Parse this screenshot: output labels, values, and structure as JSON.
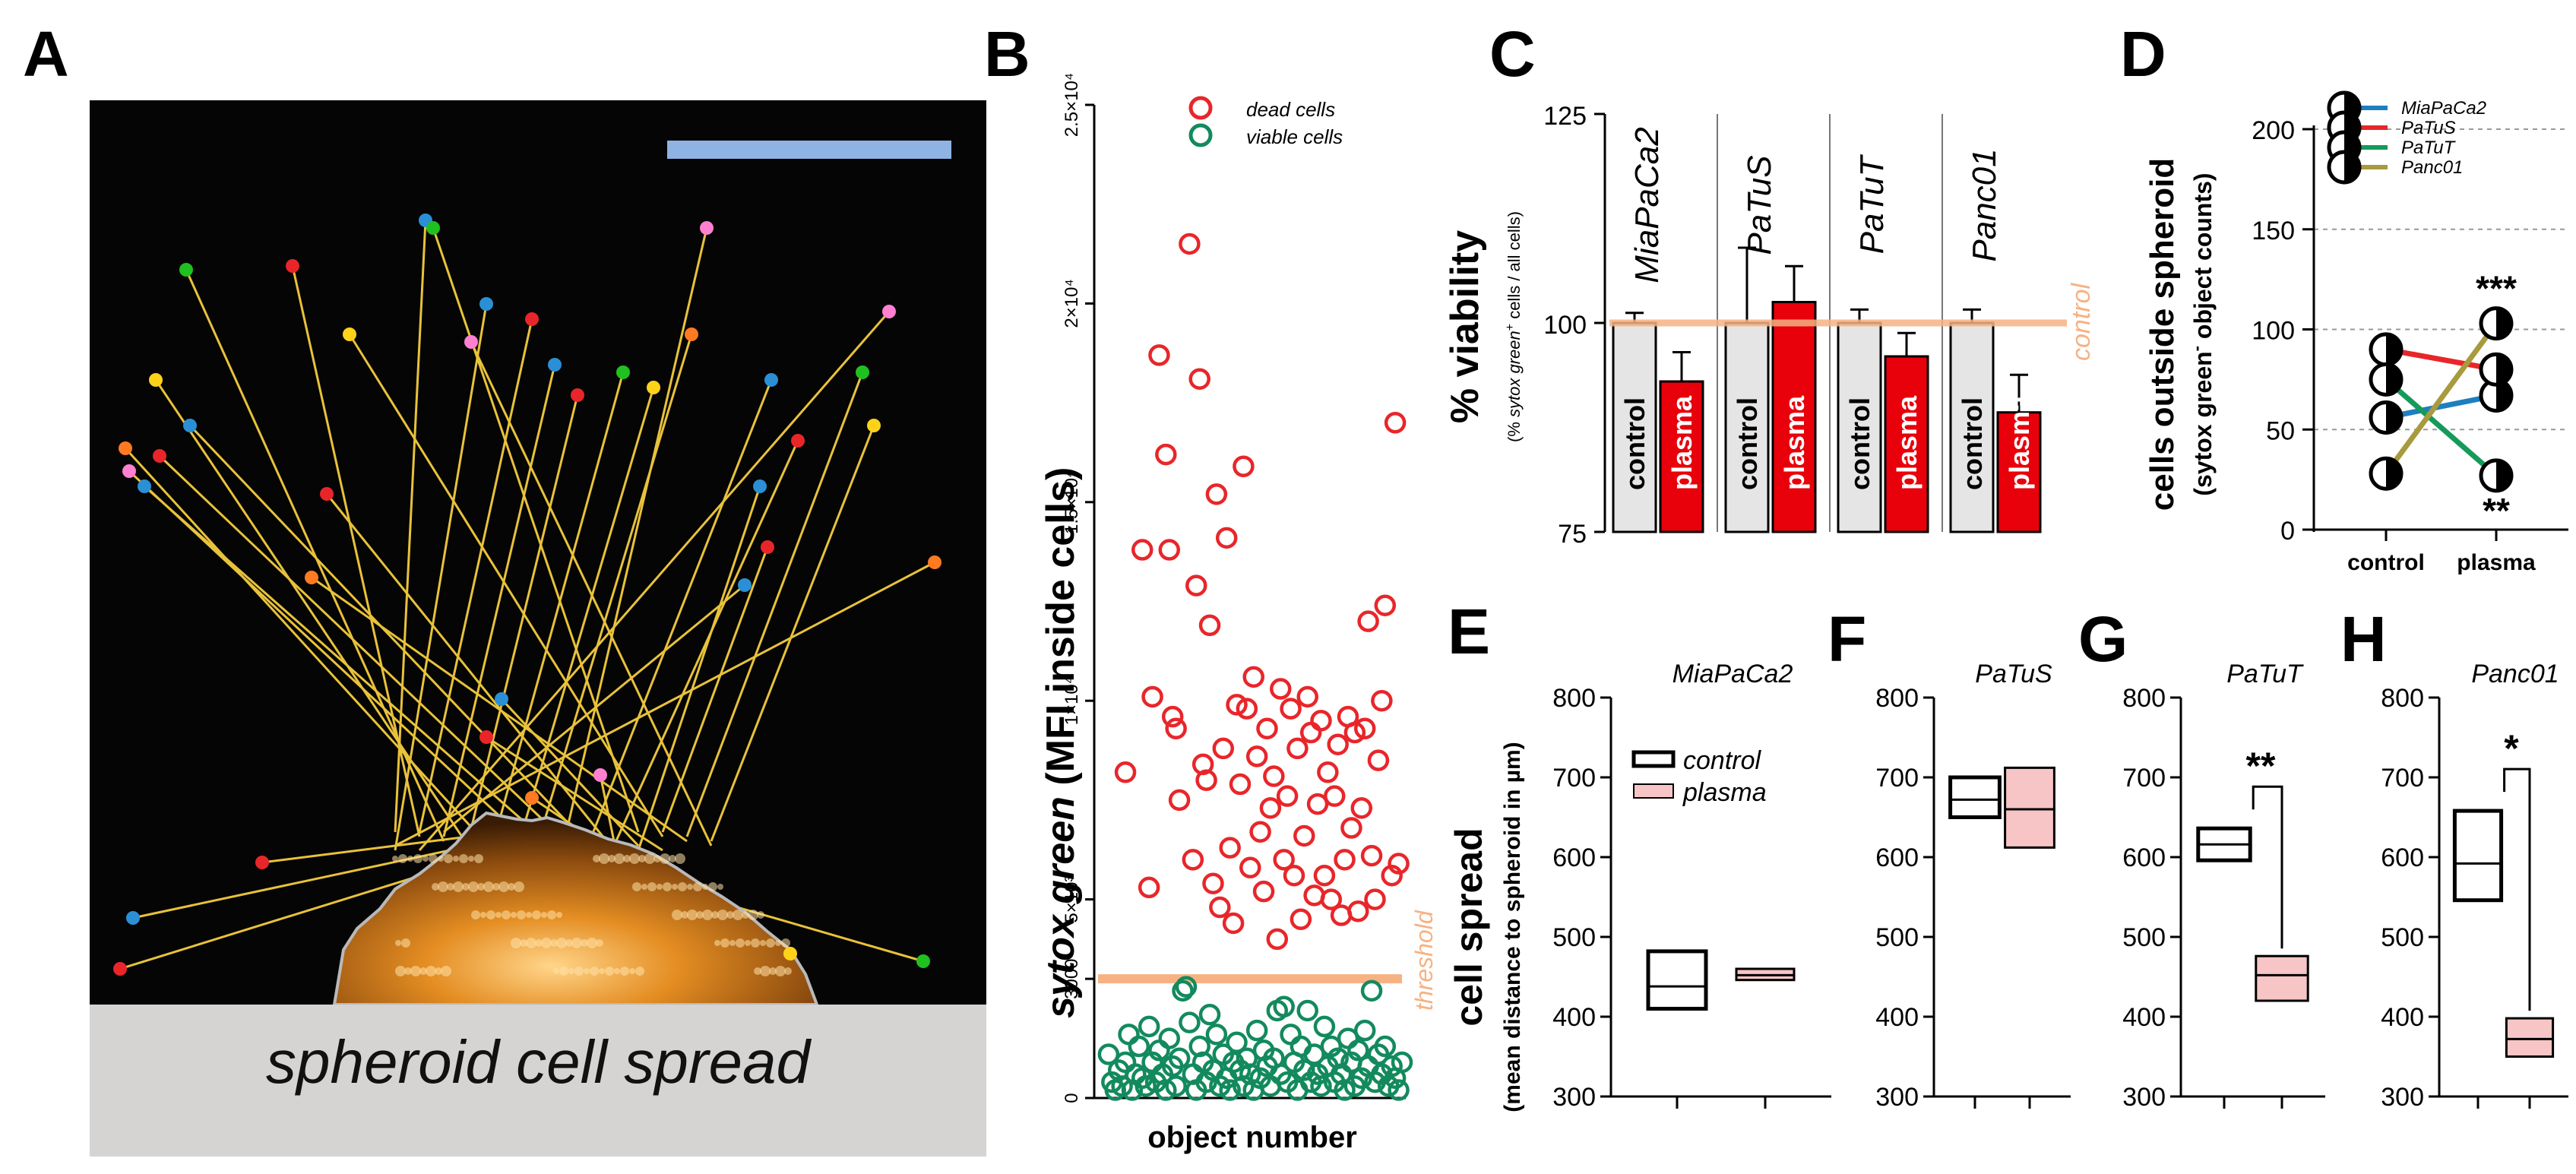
{
  "panels": {
    "a": "A",
    "b": "B",
    "c": "C",
    "d": "D",
    "e": "E",
    "f": "F",
    "g": "G",
    "h": "H"
  },
  "colors": {
    "dead": "#e8262a",
    "viable": "#138a5e",
    "threshold": "#f6b283",
    "control_fill": "#e5e5e5",
    "plasma_fill": "#e8000b",
    "plasma_box": "#f7c5c5",
    "scale_bar": "#8fb4e3"
  },
  "panel_a": {
    "caption": "spheroid cell spread"
  },
  "chart_data": [
    {
      "id": "B",
      "type": "scatter",
      "xlabel": "object number",
      "ylabel_italic": "sytox green",
      "ylabel_rest": " (MFI inside cells)",
      "ylim": [
        0,
        25000
      ],
      "yticks": [
        {
          "v": 0,
          "label": "0"
        },
        {
          "v": 3000,
          "label": "3000"
        },
        {
          "v": 5000,
          "label": "5×10³"
        },
        {
          "v": 10000,
          "label": "1×10⁴"
        },
        {
          "v": 15000,
          "label": "1.5×10⁴"
        },
        {
          "v": 20000,
          "label": "2×10⁴"
        },
        {
          "v": 25000,
          "label": "2.5×10⁴"
        }
      ],
      "threshold": 3000,
      "threshold_label": "threshold",
      "series": [
        {
          "name": "dead cells",
          "points": [
            [
              8,
              8200
            ],
            [
              13,
              13800
            ],
            [
              15,
              5300
            ],
            [
              16,
              10100
            ],
            [
              18,
              18700
            ],
            [
              20,
              16200
            ],
            [
              21,
              13800
            ],
            [
              22,
              9600
            ],
            [
              23,
              9300
            ],
            [
              24,
              7500
            ],
            [
              27,
              21500
            ],
            [
              28,
              6000
            ],
            [
              29,
              12900
            ],
            [
              30,
              18100
            ],
            [
              31,
              8400
            ],
            [
              32,
              8000
            ],
            [
              33,
              11900
            ],
            [
              34,
              5400
            ],
            [
              35,
              15200
            ],
            [
              36,
              4800
            ],
            [
              37,
              8800
            ],
            [
              38,
              14100
            ],
            [
              39,
              6300
            ],
            [
              40,
              4400
            ],
            [
              41,
              9900
            ],
            [
              42,
              7900
            ],
            [
              43,
              15900
            ],
            [
              44,
              9800
            ],
            [
              45,
              5800
            ],
            [
              46,
              10600
            ],
            [
              47,
              8600
            ],
            [
              48,
              6700
            ],
            [
              49,
              5200
            ],
            [
              50,
              9300
            ],
            [
              51,
              7300
            ],
            [
              52,
              8100
            ],
            [
              53,
              4000
            ],
            [
              54,
              10300
            ],
            [
              55,
              6000
            ],
            [
              56,
              7600
            ],
            [
              57,
              9800
            ],
            [
              58,
              5600
            ],
            [
              59,
              8800
            ],
            [
              60,
              4500
            ],
            [
              61,
              6600
            ],
            [
              62,
              10100
            ],
            [
              63,
              9200
            ],
            [
              64,
              5100
            ],
            [
              65,
              7400
            ],
            [
              66,
              9500
            ],
            [
              67,
              5600
            ],
            [
              68,
              8200
            ],
            [
              69,
              5000
            ],
            [
              70,
              7600
            ],
            [
              71,
              8900
            ],
            [
              72,
              4600
            ],
            [
              73,
              6000
            ],
            [
              74,
              9600
            ],
            [
              75,
              6800
            ],
            [
              76,
              9200
            ],
            [
              77,
              4700
            ],
            [
              78,
              7300
            ],
            [
              79,
              9300
            ],
            [
              80,
              12000
            ],
            [
              81,
              6100
            ],
            [
              82,
              5000
            ],
            [
              83,
              8500
            ],
            [
              84,
              10000
            ],
            [
              85,
              12400
            ],
            [
              87,
              5600
            ],
            [
              88,
              17000
            ],
            [
              89,
              5900
            ]
          ]
        },
        {
          "name": "viable cells",
          "points": [
            [
              3,
              1100
            ],
            [
              4,
              400
            ],
            [
              5,
              200
            ],
            [
              6,
              700
            ],
            [
              7,
              300
            ],
            [
              8,
              900
            ],
            [
              9,
              1600
            ],
            [
              10,
              200
            ],
            [
              11,
              600
            ],
            [
              12,
              1300
            ],
            [
              13,
              500
            ],
            [
              14,
              300
            ],
            [
              15,
              1800
            ],
            [
              16,
              900
            ],
            [
              17,
              400
            ],
            [
              18,
              1200
            ],
            [
              19,
              600
            ],
            [
              20,
              200
            ],
            [
              21,
              1500
            ],
            [
              22,
              800
            ],
            [
              23,
              300
            ],
            [
              24,
              1000
            ],
            [
              25,
              2700
            ],
            [
              26,
              2800
            ],
            [
              27,
              1900
            ],
            [
              28,
              600
            ],
            [
              29,
              200
            ],
            [
              30,
              1300
            ],
            [
              31,
              900
            ],
            [
              32,
              400
            ],
            [
              33,
              2100
            ],
            [
              34,
              700
            ],
            [
              35,
              1600
            ],
            [
              36,
              300
            ],
            [
              37,
              1100
            ],
            [
              38,
              500
            ],
            [
              39,
              200
            ],
            [
              40,
              900
            ],
            [
              41,
              1400
            ],
            [
              42,
              700
            ],
            [
              43,
              300
            ],
            [
              44,
              1000
            ],
            [
              45,
              600
            ],
            [
              46,
              200
            ],
            [
              47,
              1700
            ],
            [
              48,
              500
            ],
            [
              49,
              1200
            ],
            [
              50,
              800
            ],
            [
              51,
              300
            ],
            [
              52,
              1000
            ],
            [
              53,
              2200
            ],
            [
              54,
              600
            ],
            [
              55,
              2300
            ],
            [
              56,
              400
            ],
            [
              57,
              1600
            ],
            [
              58,
              900
            ],
            [
              59,
              200
            ],
            [
              60,
              1300
            ],
            [
              61,
              700
            ],
            [
              62,
              2200
            ],
            [
              63,
              400
            ],
            [
              64,
              1100
            ],
            [
              65,
              600
            ],
            [
              66,
              300
            ],
            [
              67,
              1800
            ],
            [
              68,
              800
            ],
            [
              69,
              1300
            ],
            [
              70,
              400
            ],
            [
              71,
              1000
            ],
            [
              72,
              600
            ],
            [
              73,
              200
            ],
            [
              74,
              1500
            ],
            [
              75,
              900
            ],
            [
              76,
              300
            ],
            [
              77,
              1200
            ],
            [
              78,
              500
            ],
            [
              79,
              1700
            ],
            [
              80,
              800
            ],
            [
              81,
              2700
            ],
            [
              82,
              400
            ],
            [
              83,
              1100
            ],
            [
              84,
              600
            ],
            [
              85,
              1300
            ],
            [
              86,
              300
            ],
            [
              87,
              800
            ],
            [
              88,
              500
            ],
            [
              89,
              200
            ],
            [
              90,
              900
            ]
          ]
        }
      ]
    },
    {
      "id": "C",
      "type": "bar",
      "ylabel": "% viability",
      "ylabel_sub_pre": "(% ",
      "ylabel_sub_it": "sytox green",
      "ylabel_sub_sup": "+",
      "ylabel_sub_post": " cells / all cells)",
      "ylim": [
        75,
        125
      ],
      "yticks": [
        75,
        100,
        125
      ],
      "reference": 100,
      "reference_label": "control",
      "groups": [
        {
          "name": "MiaPaCa2",
          "control": {
            "label": "control",
            "value": 100,
            "err": 1.2
          },
          "plasma": {
            "label": "plasma",
            "value": 93,
            "err": 3.5
          }
        },
        {
          "name": "PaTuS",
          "control": {
            "label": "control",
            "value": 100,
            "err": 9
          },
          "plasma": {
            "label": "plasma",
            "value": 102.5,
            "err": 4.3
          }
        },
        {
          "name": "PaTuT",
          "control": {
            "label": "control",
            "value": 100,
            "err": 1.6
          },
          "plasma": {
            "label": "plasma",
            "value": 96,
            "err": 2.8
          }
        },
        {
          "name": "Panc01",
          "control": {
            "label": "control",
            "value": 100,
            "err": 1.6
          },
          "plasma": {
            "label": "plasma",
            "value": 89.3,
            "err": 4.5
          }
        }
      ]
    },
    {
      "id": "D",
      "type": "line",
      "ylabel": "cells outside spheroid",
      "ylabel_sub_pre": "(sytox green",
      "ylabel_sub_sup": "-",
      "ylabel_sub_post": " object counts)",
      "categories": [
        "control",
        "plasma"
      ],
      "ylim": [
        0,
        200
      ],
      "yticks": [
        0,
        50,
        100,
        150,
        200
      ],
      "series": [
        {
          "name": "MiaPaCa2",
          "color": "#1d7fbf",
          "values": [
            56,
            67
          ]
        },
        {
          "name": "PaTuS",
          "color": "#e8262a",
          "values": [
            90,
            80
          ]
        },
        {
          "name": "PaTuT",
          "color": "#159a5a",
          "values": [
            75,
            27
          ]
        },
        {
          "name": "Panc01",
          "color": "#a89a3e",
          "values": [
            28,
            103
          ]
        }
      ],
      "annotations": [
        {
          "text": "***",
          "x": "plasma",
          "y": 103,
          "pos": "above"
        },
        {
          "text": "**",
          "x": "plasma",
          "y": 27,
          "pos": "below"
        }
      ]
    },
    {
      "id": "E",
      "type": "box",
      "title": "MiaPaCa2",
      "ylabel": "cell spread",
      "ylabel_sub": "(mean distance to spheroid in µm)",
      "ylim": [
        300,
        800
      ],
      "yticks": [
        300,
        400,
        500,
        600,
        700,
        800
      ],
      "legend": [
        "control",
        "plasma"
      ],
      "boxes": [
        {
          "group": "control",
          "min": 410,
          "mid": 438,
          "max": 482
        },
        {
          "group": "plasma",
          "min": 446,
          "mid": 452,
          "max": 460
        }
      ],
      "significance": ""
    },
    {
      "id": "F",
      "type": "box",
      "title": "PaTuS",
      "ylim": [
        300,
        800
      ],
      "yticks": [
        300,
        400,
        500,
        600,
        700,
        800
      ],
      "boxes": [
        {
          "group": "control",
          "min": 650,
          "mid": 672,
          "max": 700
        },
        {
          "group": "plasma",
          "min": 612,
          "mid": 660,
          "max": 712
        }
      ],
      "significance": ""
    },
    {
      "id": "G",
      "type": "box",
      "title": "PaTuT",
      "ylim": [
        300,
        800
      ],
      "yticks": [
        300,
        400,
        500,
        600,
        700,
        800
      ],
      "boxes": [
        {
          "group": "control",
          "min": 596,
          "mid": 616,
          "max": 636
        },
        {
          "group": "plasma",
          "min": 420,
          "mid": 452,
          "max": 476
        }
      ],
      "significance": "**"
    },
    {
      "id": "H",
      "type": "box",
      "title": "Panc01",
      "ylim": [
        300,
        800
      ],
      "yticks": [
        300,
        400,
        500,
        600,
        700,
        800
      ],
      "boxes": [
        {
          "group": "control",
          "min": 546,
          "mid": 592,
          "max": 658
        },
        {
          "group": "plasma",
          "min": 350,
          "mid": 372,
          "max": 398
        }
      ],
      "significance": "*"
    }
  ]
}
